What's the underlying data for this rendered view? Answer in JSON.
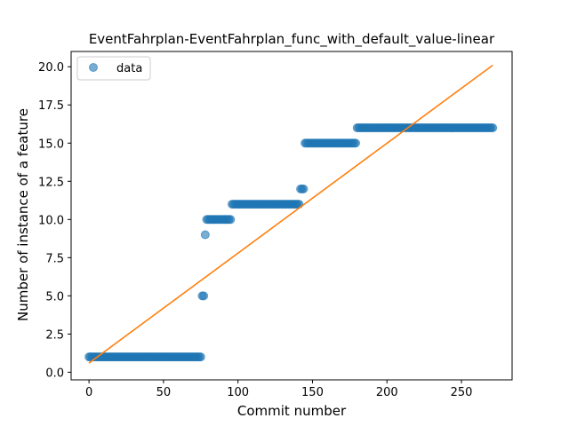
{
  "chart_data": {
    "type": "scatter",
    "title": "EventFahrplan-EventFahrplan_func_with_default_value-linear",
    "xlabel": "Commit number",
    "ylabel": "Number of instance of a feature",
    "xlim": [
      -12,
      284
    ],
    "ylim": [
      -0.5,
      21.0
    ],
    "xticks": [
      0,
      50,
      100,
      150,
      200,
      250
    ],
    "yticks": [
      0.0,
      2.5,
      5.0,
      7.5,
      10.0,
      12.5,
      15.0,
      17.5,
      20.0
    ],
    "xtick_labels": [
      "0",
      "50",
      "100",
      "150",
      "200",
      "250"
    ],
    "ytick_labels": [
      "0.0",
      "2.5",
      "5.0",
      "7.5",
      "10.0",
      "12.5",
      "15.0",
      "17.5",
      "20.0"
    ],
    "legend": {
      "position": "top-left",
      "entries": [
        "data"
      ]
    },
    "series": [
      {
        "name": "data",
        "kind": "points",
        "color": "#1f77b4",
        "segments": [
          {
            "x_start": 0,
            "x_end": 75,
            "y": 1
          },
          {
            "x_start": 76,
            "x_end": 77,
            "y": 5
          },
          {
            "x_start": 78,
            "x_end": 78,
            "y": 9
          },
          {
            "x_start": 79,
            "x_end": 95,
            "y": 10
          },
          {
            "x_start": 96,
            "x_end": 141,
            "y": 11
          },
          {
            "x_start": 142,
            "x_end": 144,
            "y": 12
          },
          {
            "x_start": 145,
            "x_end": 179,
            "y": 15
          },
          {
            "x_start": 180,
            "x_end": 271,
            "y": 16
          }
        ]
      },
      {
        "name": "",
        "kind": "line",
        "color": "#ff7f0e",
        "x": [
          0,
          271
        ],
        "y": [
          0.6,
          20.1
        ]
      }
    ]
  }
}
